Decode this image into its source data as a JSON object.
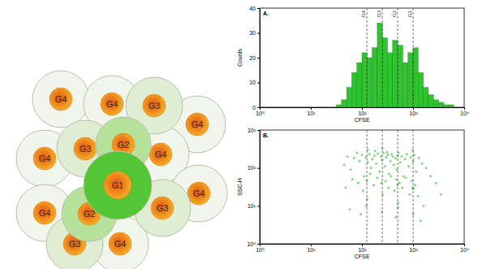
{
  "chart_data": [
    {
      "type": "histogram",
      "title": "A.",
      "x_label": "CFSE",
      "y_label": "Counts",
      "log": "x",
      "color": "#2fc42f",
      "bins": [
        31.6,
        39.8,
        50.1,
        63.1,
        79.4,
        100,
        125.9,
        158.5,
        199.5,
        251.2,
        316.2,
        398.1,
        501.2,
        631,
        794.3,
        1000,
        1258.9,
        1584.9,
        1995.3,
        2511.9,
        3162.3,
        3981.1,
        5011.9,
        6309.6,
        7943.3
      ],
      "values": [
        1,
        3,
        8,
        14,
        18,
        22,
        20,
        24,
        34,
        28,
        22,
        27,
        25,
        18,
        22,
        24,
        14,
        8,
        5,
        3,
        2,
        1,
        1,
        0
      ],
      "xlim": [
        1,
        10000
      ],
      "xticks": [
        {
          "value": 1,
          "label": "10⁰"
        },
        {
          "value": 10,
          "label": "10¹"
        },
        {
          "value": 100,
          "label": "10²"
        },
        {
          "value": 1000,
          "label": "10³"
        },
        {
          "value": 10000,
          "label": "10⁴"
        }
      ],
      "ylim": [
        0,
        40
      ],
      "yticks": [
        0,
        10,
        20,
        30,
        40
      ],
      "gates": [
        {
          "value": 125,
          "label": "G4"
        },
        {
          "value": 250,
          "label": "G3"
        },
        {
          "value": 500,
          "label": "G2"
        },
        {
          "value": 1000,
          "label": "G1"
        }
      ]
    },
    {
      "type": "scatter",
      "title": "B.",
      "x_label": "CFSE",
      "y_label": "SSC-H",
      "log": true,
      "color": "#33c433",
      "x": [
        45,
        52,
        60,
        70,
        80,
        90,
        100,
        110,
        120,
        130,
        140,
        150,
        160,
        175,
        190,
        205,
        220,
        235,
        250,
        265,
        280,
        300,
        320,
        340,
        360,
        380,
        400,
        420,
        450,
        480,
        500,
        520,
        560,
        600,
        650,
        700,
        760,
        820,
        900,
        980,
        1000,
        1050,
        1150,
        1300,
        1500,
        1800,
        2200,
        2800,
        3500,
        48,
        65,
        85,
        105,
        125,
        128,
        145,
        170,
        200,
        240,
        255,
        290,
        330,
        370,
        430,
        470,
        495,
        510,
        540,
        620,
        720,
        850,
        950,
        1020,
        1100,
        1250,
        1600,
        58,
        95,
        122,
        130,
        180,
        245,
        252,
        310,
        460,
        505,
        990,
        1010,
        1400
      ],
      "values": [
        120,
        200,
        90,
        180,
        250,
        150,
        220,
        60,
        190,
        140,
        230,
        100,
        170,
        210,
        130,
        240,
        80,
        200,
        160,
        250,
        110,
        190,
        220,
        70,
        150,
        230,
        200,
        120,
        180,
        90,
        210,
        250,
        140,
        200,
        60,
        170,
        230,
        110,
        190,
        30,
        150,
        220,
        80,
        180,
        130,
        100,
        60,
        40,
        20,
        30,
        50,
        40,
        25,
        45,
        15,
        70,
        35,
        55,
        40,
        20,
        45,
        30,
        60,
        25,
        50,
        35,
        12,
        40,
        30,
        55,
        20,
        45,
        28,
        35,
        18,
        10,
        8,
        6,
        10,
        300,
        280,
        7,
        320,
        260,
        5,
        9,
        290,
        6,
        4
      ],
      "xlim": [
        1,
        10000
      ],
      "xticks": [
        {
          "value": 1,
          "label": "10⁰"
        },
        {
          "value": 10,
          "label": "10¹"
        },
        {
          "value": 100,
          "label": "10²"
        },
        {
          "value": 1000,
          "label": "10³"
        },
        {
          "value": 10000,
          "label": "10⁴"
        }
      ],
      "ylim": [
        1,
        1000
      ],
      "yticks": [
        {
          "value": 1,
          "label": "10⁰"
        },
        {
          "value": 10,
          "label": "10¹"
        },
        {
          "value": 100,
          "label": "10²"
        },
        {
          "value": 1000,
          "label": "10³"
        }
      ],
      "gates": [
        125,
        250,
        500,
        1000
      ]
    }
  ],
  "diagram": {
    "nodes": [
      {
        "label": "G4"
      },
      {
        "label": "G4"
      },
      {
        "label": "G4"
      },
      {
        "label": "G4"
      },
      {
        "label": "G4"
      },
      {
        "label": "G4"
      },
      {
        "label": "G4"
      },
      {
        "label": "G4"
      },
      {
        "label": "G3"
      },
      {
        "label": "G3"
      },
      {
        "label": "G3"
      },
      {
        "label": "G3"
      },
      {
        "label": "G2"
      },
      {
        "label": "G2"
      },
      {
        "label": "G1"
      }
    ]
  }
}
